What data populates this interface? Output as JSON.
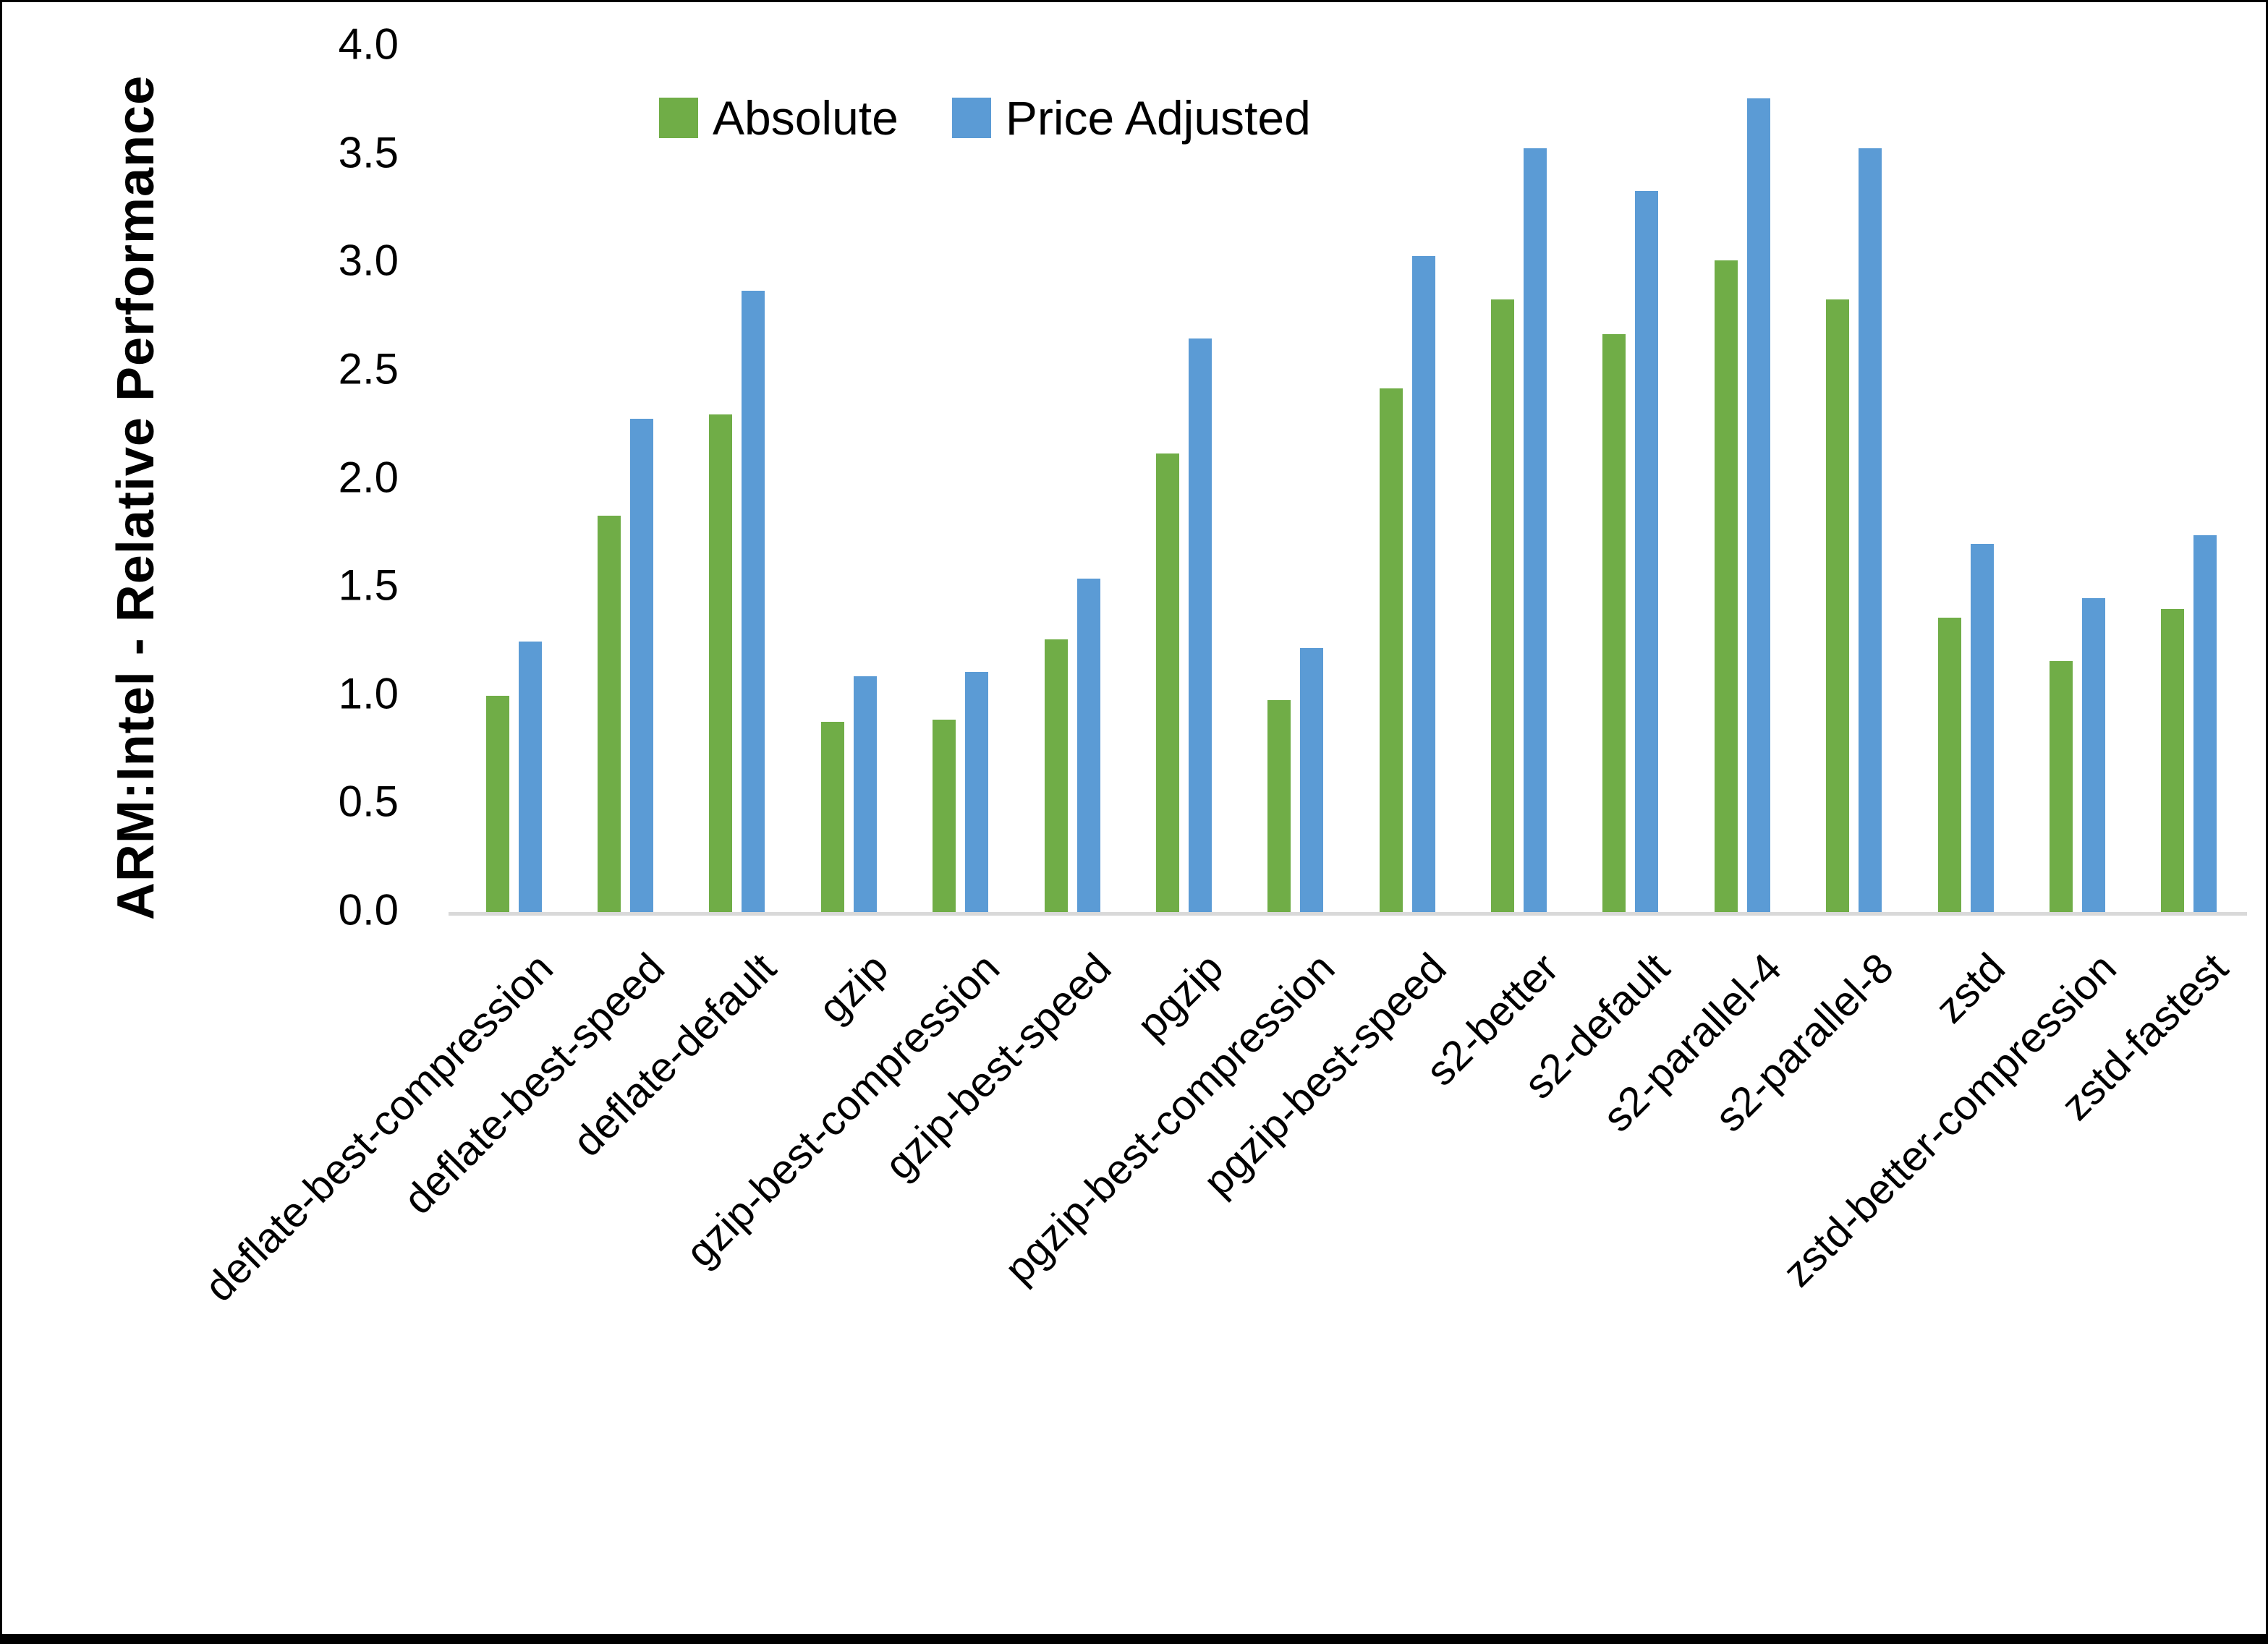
{
  "figure": {
    "background": "#ffffff",
    "border_color": "#000000",
    "axis_line_color": "#d9d9d9",
    "text_color": "#000000"
  },
  "chart_data": {
    "type": "bar",
    "title": "",
    "xlabel": "",
    "ylabel": "ARM:Intel - Relative Performance",
    "ylim": [
      0.0,
      4.0
    ],
    "ytick_step": 0.5,
    "ytick_labels": [
      "0.0",
      "0.5",
      "1.0",
      "1.5",
      "2.0",
      "2.5",
      "3.0",
      "3.5",
      "4.0"
    ],
    "grid": "off",
    "legend_position": "top-center-inside",
    "categories": [
      "deflate-best-compression",
      "deflate-best-speed",
      "deflate-default",
      "gzip",
      "gzip-best-compression",
      "gzip-best-speed",
      "pgzip",
      "pgzip-best-compression",
      "pgzip-best-speed",
      "s2-better",
      "s2-default",
      "s2-parallel-4",
      "s2-parallel-8",
      "zstd",
      "zstd-better-compression",
      "zstd-fastest"
    ],
    "series": [
      {
        "name": "Absolute",
        "color": "#70AD47",
        "values": [
          1.0,
          1.83,
          2.3,
          0.88,
          0.89,
          1.26,
          2.12,
          0.98,
          2.42,
          2.83,
          2.67,
          3.01,
          2.83,
          1.36,
          1.16,
          1.4
        ]
      },
      {
        "name": "Price Adjusted",
        "color": "#5B9BD5",
        "values": [
          1.25,
          2.28,
          2.87,
          1.09,
          1.11,
          1.54,
          2.65,
          1.22,
          3.03,
          3.53,
          3.33,
          3.76,
          3.53,
          1.7,
          1.45,
          1.74
        ]
      }
    ]
  }
}
